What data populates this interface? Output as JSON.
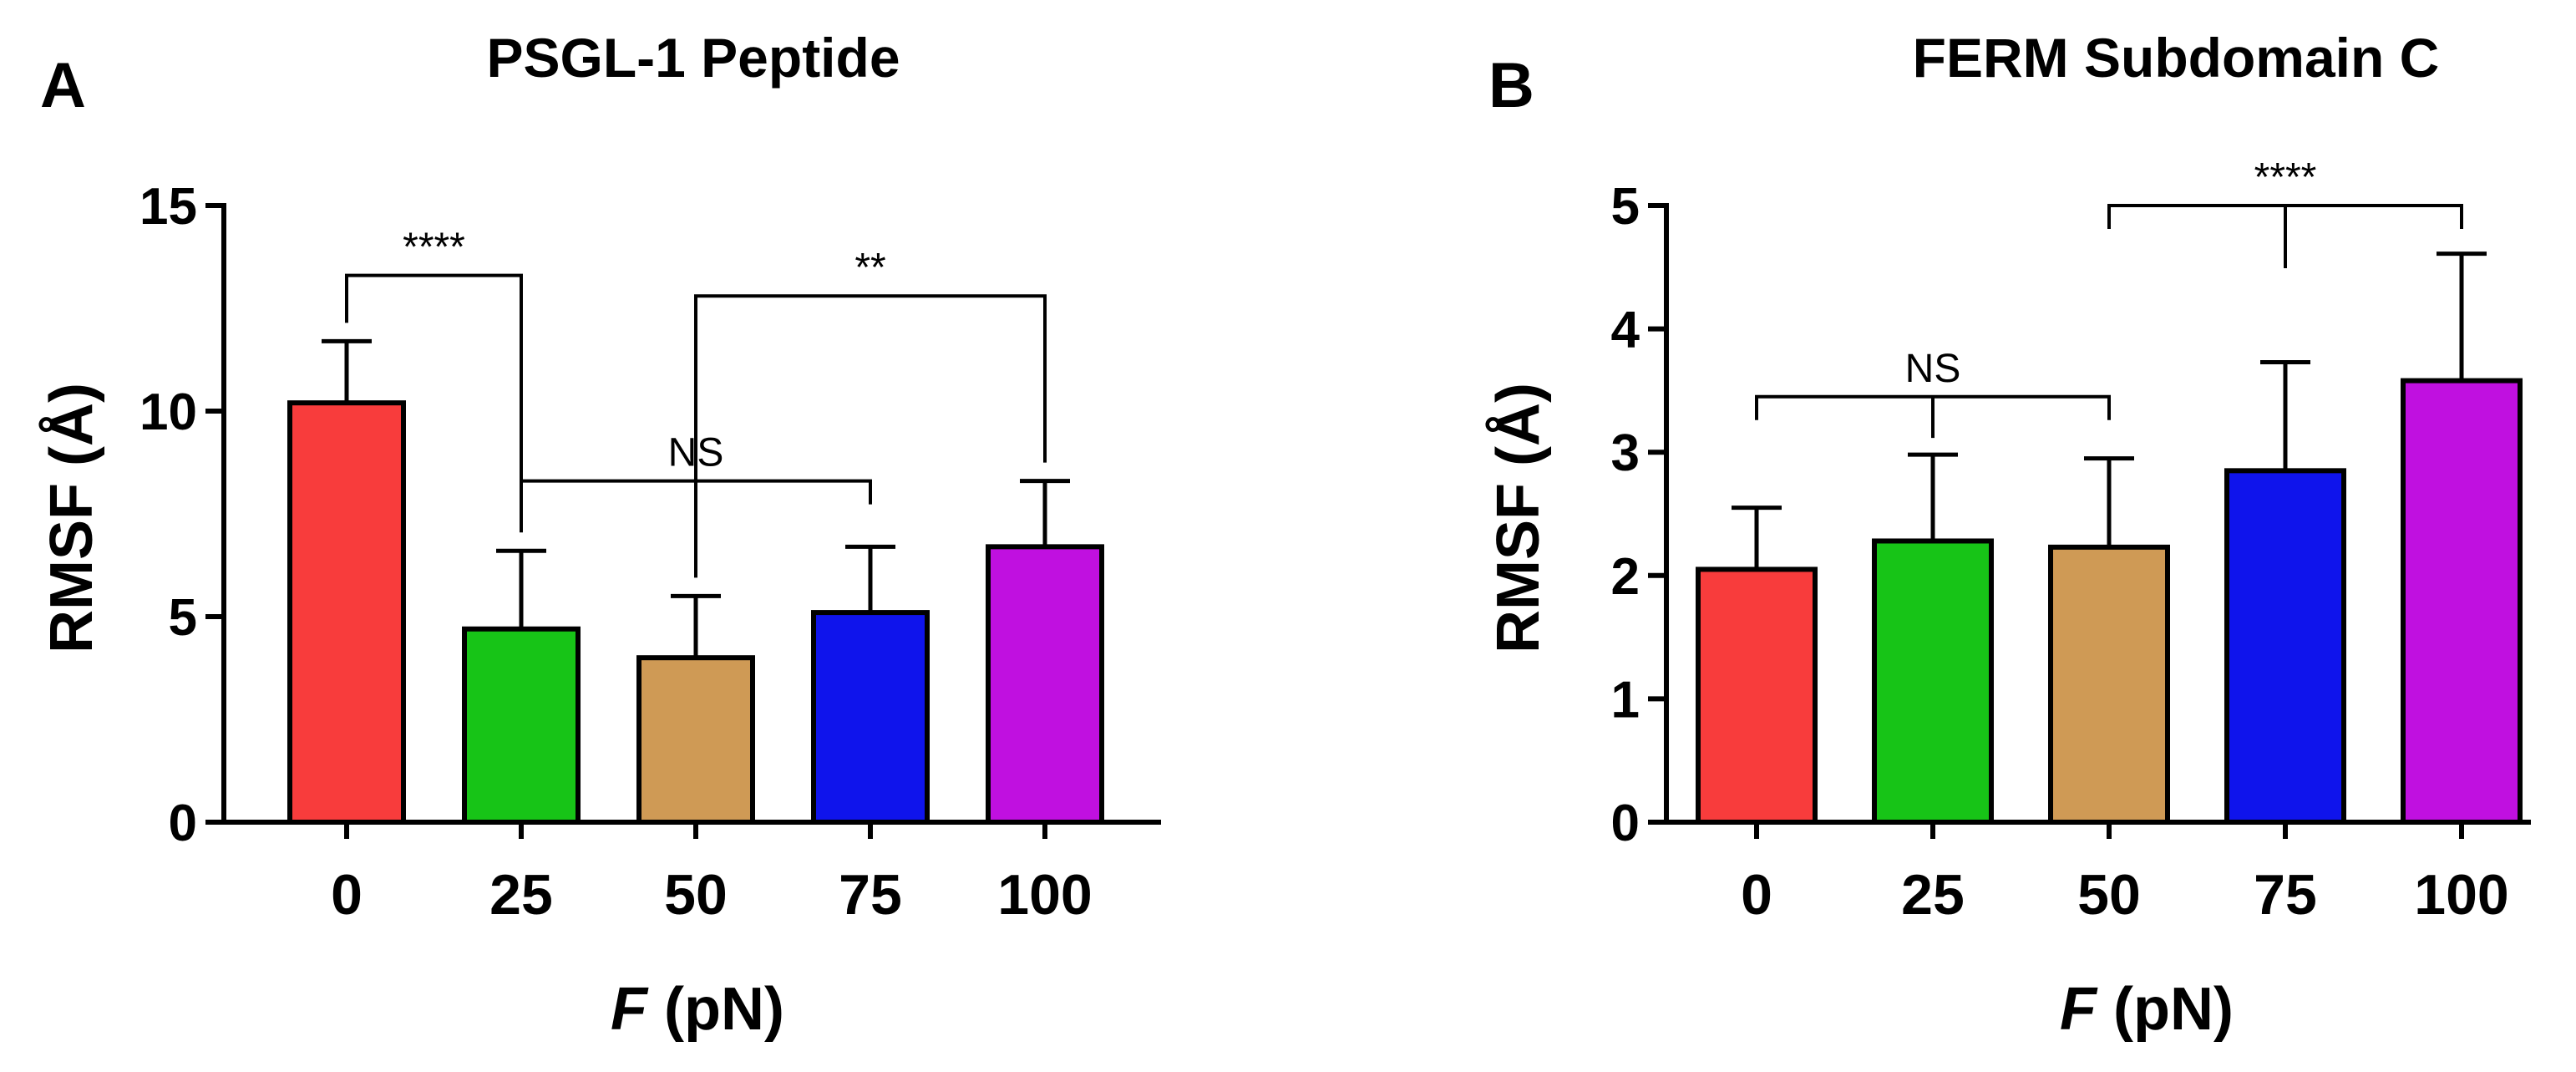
{
  "chart_data": [
    {
      "panel_label": "A",
      "type": "bar",
      "title": "PSGL-1 Peptide",
      "xlabel_var": "F",
      "xlabel_unit": " (pN)",
      "ylabel": "RMSF (Å)",
      "categories": [
        "0",
        "25",
        "50",
        "75",
        "100"
      ],
      "values": [
        10.2,
        4.7,
        4.0,
        5.1,
        6.7
      ],
      "errors": [
        1.5,
        1.9,
        1.5,
        1.6,
        1.6
      ],
      "colors": [
        "#f83c3c",
        "#17c417",
        "#cf9a55",
        "#0f14ec",
        "#c010e0"
      ],
      "ylim": [
        0,
        15
      ],
      "yticks": [
        0,
        5,
        10,
        15
      ],
      "annotations": [
        {
          "type": "pair",
          "from": 0,
          "to": 1,
          "y": 13.3,
          "label": "****"
        },
        {
          "type": "group",
          "from": 1,
          "to": 3,
          "y": 8.3,
          "label": "NS"
        },
        {
          "type": "pair",
          "from": 2,
          "to": 4,
          "y": 12.8,
          "label": "**"
        }
      ]
    },
    {
      "panel_label": "B",
      "type": "bar",
      "title": "FERM Subdomain C",
      "xlabel_var": "F",
      "xlabel_unit": " (pN)",
      "ylabel": "RMSF (Å)",
      "categories": [
        "0",
        "25",
        "50",
        "75",
        "100"
      ],
      "values": [
        2.05,
        2.28,
        2.23,
        2.85,
        3.58
      ],
      "errors": [
        0.5,
        0.7,
        0.72,
        0.88,
        1.03
      ],
      "colors": [
        "#f83c3c",
        "#17c417",
        "#cf9a55",
        "#0f14ec",
        "#c010e0"
      ],
      "ylim": [
        0,
        5
      ],
      "yticks": [
        0,
        1,
        2,
        3,
        4,
        5
      ],
      "annotations": [
        {
          "type": "group",
          "from": 0,
          "to": 2,
          "y": 3.45,
          "label": "NS"
        },
        {
          "type": "group",
          "from": 2,
          "to": 4,
          "y": 5.0,
          "label": "****"
        }
      ]
    }
  ]
}
